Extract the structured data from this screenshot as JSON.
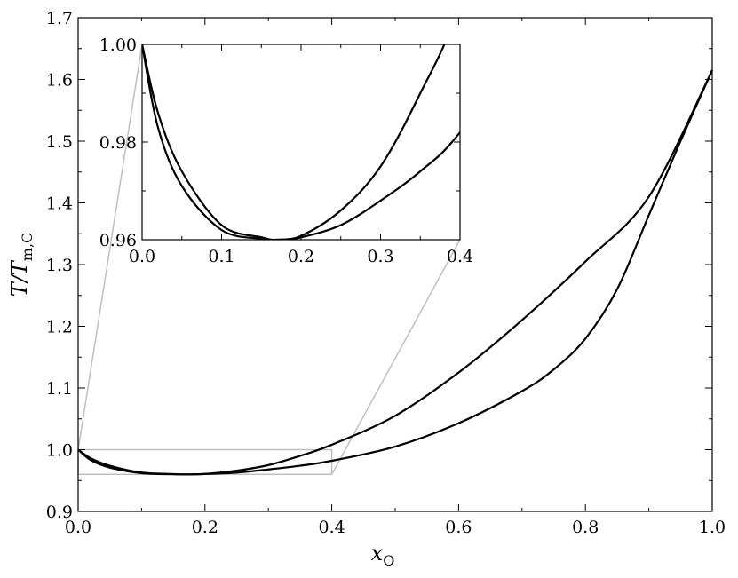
{
  "chart_data": {
    "type": "line",
    "xlabel": {
      "main": "x",
      "sub": "O"
    },
    "ylabel": {
      "main": "T/T",
      "sub": "m,C"
    },
    "xlim": [
      0.0,
      1.0
    ],
    "ylim": [
      0.9,
      1.7
    ],
    "xticks": [
      "0.0",
      "0.2",
      "0.4",
      "0.6",
      "0.8",
      "1.0"
    ],
    "yticks": [
      "0.9",
      "1.0",
      "1.1",
      "1.2",
      "1.3",
      "1.4",
      "1.5",
      "1.6",
      "1.7"
    ],
    "grid": false,
    "series": [
      {
        "x": [
          0.0,
          0.02,
          0.05,
          0.1,
          0.15,
          0.17,
          0.2,
          0.25,
          0.3,
          0.35,
          0.4,
          0.5,
          0.6,
          0.7,
          0.8,
          0.9,
          1.0
        ],
        "y": [
          1.0,
          0.986,
          0.974,
          0.963,
          0.9605,
          0.96,
          0.9608,
          0.966,
          0.975,
          0.99,
          1.008,
          1.055,
          1.125,
          1.21,
          1.305,
          1.41,
          1.615
        ]
      },
      {
        "x": [
          0.0,
          0.02,
          0.05,
          0.1,
          0.15,
          0.17,
          0.2,
          0.25,
          0.3,
          0.35,
          0.4,
          0.5,
          0.6,
          0.7,
          0.75,
          0.8,
          0.85,
          0.9,
          0.95,
          1.0
        ],
        "y": [
          1.0,
          0.983,
          0.971,
          0.962,
          0.9602,
          0.96,
          0.9605,
          0.963,
          0.968,
          0.974,
          0.982,
          1.005,
          1.043,
          1.095,
          1.13,
          1.18,
          1.26,
          1.38,
          1.5,
          1.615
        ]
      }
    ],
    "inset": {
      "xlim": [
        0.0,
        0.4
      ],
      "ylim": [
        0.96,
        1.0
      ],
      "xticks": [
        "0.0",
        "0.1",
        "0.2",
        "0.3",
        "0.4"
      ],
      "yticks": [
        "0.96",
        "0.98",
        "1.00"
      ],
      "zoom_region": {
        "x": [
          0.0,
          0.4
        ],
        "y": [
          0.96,
          1.0
        ]
      }
    }
  }
}
